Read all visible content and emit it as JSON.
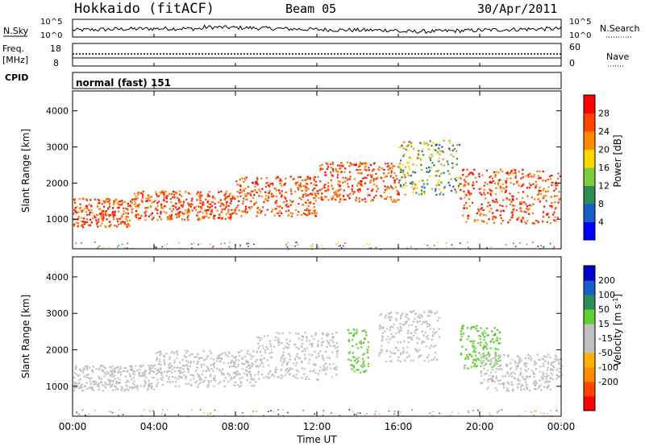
{
  "header": {
    "station": "Hokkaido (fitACF)",
    "beam": "Beam 05",
    "date": "30/Apr/2011"
  },
  "strips": {
    "nsky": {
      "label": "N.Sky",
      "left_top": "10^5",
      "left_bottom": "10^0",
      "right_top": "10^5",
      "right_bottom": "10^0",
      "right_label": "N.Search"
    },
    "freq": {
      "label_top": "Freq.",
      "label_bottom": "[MHz]",
      "left_top": "18",
      "left_bottom": "8",
      "right_top": "60",
      "right_bottom": "0",
      "right_label": "Nave"
    },
    "cpid": {
      "label": "CPID",
      "value": "normal (fast) 151"
    }
  },
  "colors": {
    "power_scale": [
      "#0000ff",
      "#1a5cc8",
      "#2e8b57",
      "#7ccc3c",
      "#ffd700",
      "#ff8c00",
      "#ff4500",
      "#ff0000"
    ],
    "velocity_scale": [
      "#ff0000",
      "#ff4500",
      "#ff8c00",
      "#ffb000",
      "#c0c0c0",
      "#c0c0c0",
      "#60d030",
      "#2e8b57",
      "#1a5cc8",
      "#0000cc"
    ]
  },
  "chart_data": [
    {
      "type": "heatmap",
      "ylabel": "Slant Range [km]",
      "xlabel": "Time UT",
      "x_ticks": [
        "00:00",
        "04:00",
        "08:00",
        "12:00",
        "16:00",
        "20:00",
        "00:00"
      ],
      "y_ticks": [
        1000,
        2000,
        3000,
        4000
      ],
      "ylim": [
        180,
        4550
      ],
      "xlim_hours": [
        0,
        24
      ],
      "colorbar": {
        "label": "Power [dB]",
        "ticks": [
          4,
          8,
          12,
          16,
          20,
          24,
          28
        ]
      },
      "echo_bands": [
        {
          "t0": 0,
          "t1": 3,
          "r0": 800,
          "r1": 1600,
          "level": "high"
        },
        {
          "t0": 3,
          "t1": 8,
          "r0": 1000,
          "r1": 1800,
          "level": "high"
        },
        {
          "t0": 8,
          "t1": 12,
          "r0": 1100,
          "r1": 2200,
          "level": "high"
        },
        {
          "t0": 12,
          "t1": 16,
          "r0": 1500,
          "r1": 2600,
          "level": "high"
        },
        {
          "t0": 16,
          "t1": 19,
          "r0": 1700,
          "r1": 3200,
          "level": "medium"
        },
        {
          "t0": 19,
          "t1": 24,
          "r0": 900,
          "r1": 2400,
          "level": "high"
        }
      ]
    },
    {
      "type": "heatmap",
      "ylabel": "Slant Range [km]",
      "xlabel": "Time UT",
      "x_ticks": [
        "00:00",
        "04:00",
        "08:00",
        "12:00",
        "16:00",
        "20:00",
        "00:00"
      ],
      "y_ticks": [
        1000,
        2000,
        3000,
        4000
      ],
      "ylim": [
        180,
        4550
      ],
      "xlim_hours": [
        0,
        24
      ],
      "colorbar": {
        "label": "Velocity [m s^-1]",
        "ticks": [
          200,
          100,
          50,
          15,
          -15,
          -50,
          -100,
          -200
        ]
      },
      "echo_bands": [
        {
          "t0": 0,
          "t1": 4,
          "r0": 900,
          "r1": 1600,
          "level": "ground"
        },
        {
          "t0": 4,
          "t1": 9,
          "r0": 1000,
          "r1": 2000,
          "level": "ground"
        },
        {
          "t0": 9,
          "t1": 13,
          "r0": 1200,
          "r1": 2500,
          "level": "ground"
        },
        {
          "t0": 13.5,
          "t1": 14.5,
          "r0": 1400,
          "r1": 2600,
          "level": "positive"
        },
        {
          "t0": 15,
          "t1": 18,
          "r0": 1700,
          "r1": 3100,
          "level": "ground"
        },
        {
          "t0": 19,
          "t1": 21,
          "r0": 1500,
          "r1": 2700,
          "level": "positive"
        },
        {
          "t0": 20,
          "t1": 24,
          "r0": 900,
          "r1": 1900,
          "level": "ground"
        }
      ]
    }
  ]
}
